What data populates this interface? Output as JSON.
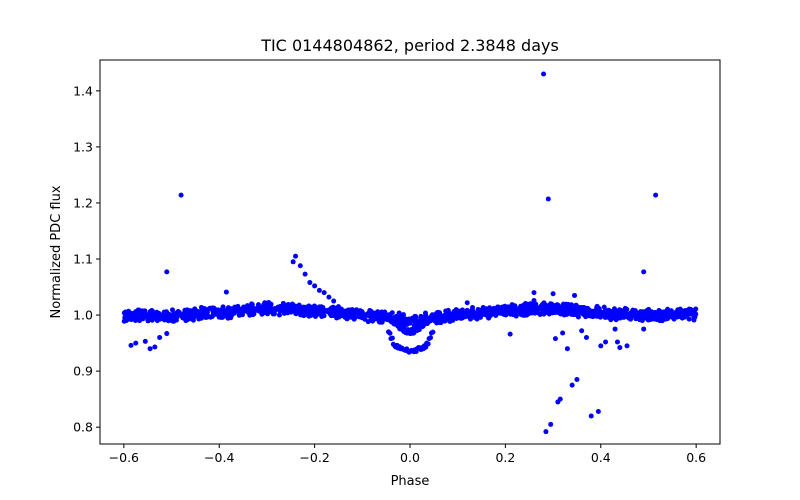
{
  "chart_data": {
    "type": "scatter",
    "title": "TIC 0144804862, period 2.3848 days",
    "xlabel": "Phase",
    "ylabel": "Normalized PDC flux",
    "xlim": [
      -0.65,
      0.65
    ],
    "ylim": [
      0.77,
      1.455
    ],
    "x_ticks": [
      -0.6,
      -0.4,
      -0.2,
      0.0,
      0.2,
      0.4,
      0.6
    ],
    "x_tick_labels": [
      "−0.6",
      "−0.4",
      "−0.2",
      "0.0",
      "0.2",
      "0.4",
      "0.6"
    ],
    "y_ticks": [
      0.8,
      0.9,
      1.0,
      1.1,
      1.2,
      1.3,
      1.4
    ],
    "y_tick_labels": [
      "0.8",
      "0.9",
      "1.0",
      "1.1",
      "1.2",
      "1.3",
      "1.4"
    ],
    "grid": false,
    "marker_color": "#0000ff",
    "baseline_model": {
      "description": "dense band of points along normalized flux ~1.0 with primary dip near phase 0 and slight brightening near phase +/-0.3",
      "x_range": [
        -0.6,
        0.6
      ],
      "band_center": [
        [
          -0.6,
          1.0
        ],
        [
          -0.5,
          0.999
        ],
        [
          -0.4,
          1.004
        ],
        [
          -0.3,
          1.012
        ],
        [
          -0.2,
          1.008
        ],
        [
          -0.1,
          1.0
        ],
        [
          -0.05,
          0.995
        ],
        [
          0.0,
          0.99
        ],
        [
          0.05,
          0.995
        ],
        [
          0.1,
          1.0
        ],
        [
          0.2,
          1.008
        ],
        [
          0.3,
          1.012
        ],
        [
          0.4,
          1.004
        ],
        [
          0.5,
          0.999
        ],
        [
          0.6,
          1.002
        ]
      ],
      "band_half_width": 0.012
    },
    "dip_points": {
      "x": [
        -0.045,
        -0.04,
        -0.035,
        -0.03,
        -0.025,
        -0.02,
        -0.015,
        -0.01,
        -0.005,
        0.0,
        0.005,
        0.01,
        0.015,
        0.02,
        0.025,
        0.03,
        0.035,
        0.04,
        0.045
      ],
      "y": [
        0.97,
        0.958,
        0.948,
        0.943,
        0.941,
        0.94,
        0.939,
        0.937,
        0.936,
        0.935,
        0.936,
        0.938,
        0.94,
        0.941,
        0.942,
        0.945,
        0.95,
        0.958,
        0.968
      ]
    },
    "outliers": {
      "x": [
        -0.585,
        -0.575,
        -0.555,
        -0.545,
        -0.535,
        -0.525,
        -0.51,
        -0.51,
        -0.48,
        -0.245,
        -0.24,
        -0.23,
        -0.22,
        -0.21,
        -0.2,
        -0.19,
        -0.18,
        -0.17,
        -0.16,
        -0.15,
        -0.13,
        -0.12,
        0.21,
        0.26,
        0.28,
        0.285,
        0.29,
        0.295,
        0.3,
        0.305,
        0.31,
        0.315,
        0.32,
        0.33,
        0.34,
        0.345,
        0.35,
        0.36,
        0.37,
        0.38,
        0.395,
        0.4,
        0.41,
        0.43,
        0.435,
        0.44,
        0.455,
        0.49,
        0.49,
        0.515,
        -0.385,
        0.12,
        0.26
      ],
      "y": [
        0.946,
        0.95,
        0.953,
        0.94,
        0.943,
        0.96,
        0.967,
        1.077,
        1.214,
        1.095,
        1.105,
        1.088,
        1.073,
        1.058,
        1.052,
        1.044,
        1.04,
        1.032,
        1.025,
        1.015,
        1.007,
        1.0,
        0.966,
        1.04,
        1.43,
        0.792,
        1.207,
        0.805,
        1.038,
        0.958,
        0.845,
        0.85,
        0.968,
        0.94,
        0.875,
        1.035,
        0.885,
        0.972,
        0.96,
        0.82,
        0.828,
        0.945,
        0.952,
        0.975,
        0.952,
        0.942,
        0.945,
        0.975,
        1.077,
        1.214,
        1.041,
        1.022,
        1.026
      ]
    }
  }
}
